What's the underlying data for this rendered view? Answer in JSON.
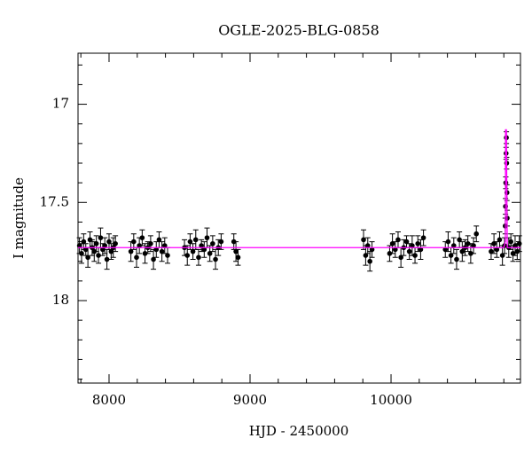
{
  "chart_data": {
    "type": "scatter",
    "title": "OGLE-2025-BLG-0858",
    "x_label": "HJD - 2450000",
    "y_label": "I magnitude",
    "xlim": [
      7780,
      10918
    ],
    "ylim": [
      18.42,
      16.74
    ],
    "xticks": [
      8000,
      9000,
      10000
    ],
    "yticks": [
      17,
      17.5,
      18
    ],
    "xminorticks": [
      7800,
      8200,
      8400,
      8600,
      8800,
      9200,
      9400,
      9600,
      9800,
      10200,
      10400,
      10600,
      10800
    ],
    "yminorticks": [
      16.8,
      16.9,
      17.1,
      17.2,
      17.3,
      17.4,
      17.6,
      17.7,
      17.8,
      17.9,
      18.1,
      18.2,
      18.3,
      18.4
    ],
    "points": {
      "color": "#000000",
      "x": [
        7790,
        7805,
        7820,
        7835,
        7850,
        7865,
        7880,
        7895,
        7910,
        7925,
        7940,
        7955,
        7970,
        7985,
        8000,
        8015,
        8030,
        8045,
        8155,
        8175,
        8195,
        8215,
        8235,
        8255,
        8275,
        8295,
        8315,
        8335,
        8355,
        8375,
        8395,
        8415,
        8535,
        8555,
        8575,
        8595,
        8615,
        8635,
        8655,
        8675,
        8695,
        8715,
        8735,
        8755,
        8775,
        8795,
        8885,
        8900,
        8915,
        9805,
        9820,
        9835,
        9850,
        9865,
        9990,
        10010,
        10030,
        10050,
        10070,
        10090,
        10110,
        10130,
        10150,
        10170,
        10190,
        10210,
        10230,
        10385,
        10405,
        10425,
        10445,
        10465,
        10485,
        10505,
        10525,
        10545,
        10565,
        10585,
        10605,
        10710,
        10730,
        10750,
        10770,
        10790,
        10805,
        10810,
        10812,
        10814,
        10816,
        10818,
        10820,
        10822,
        10824,
        10835,
        10850,
        10865,
        10880,
        10895,
        10910
      ],
      "values": [
        17.72,
        17.76,
        17.7,
        17.74,
        17.78,
        17.69,
        17.73,
        17.75,
        17.71,
        17.77,
        17.68,
        17.74,
        17.72,
        17.79,
        17.7,
        17.75,
        17.73,
        17.71,
        17.75,
        17.7,
        17.78,
        17.72,
        17.68,
        17.76,
        17.73,
        17.71,
        17.79,
        17.74,
        17.69,
        17.75,
        17.72,
        17.77,
        17.73,
        17.77,
        17.7,
        17.75,
        17.69,
        17.78,
        17.72,
        17.74,
        17.68,
        17.76,
        17.71,
        17.79,
        17.73,
        17.7,
        17.7,
        17.75,
        17.78,
        17.69,
        17.77,
        17.72,
        17.8,
        17.74,
        17.76,
        17.71,
        17.74,
        17.69,
        17.78,
        17.73,
        17.7,
        17.75,
        17.72,
        17.77,
        17.71,
        17.74,
        17.68,
        17.74,
        17.7,
        17.77,
        17.72,
        17.79,
        17.69,
        17.75,
        17.73,
        17.71,
        17.76,
        17.72,
        17.66,
        17.75,
        17.71,
        17.74,
        17.69,
        17.77,
        17.72,
        17.62,
        17.52,
        17.4,
        17.25,
        17.17,
        17.3,
        17.45,
        17.58,
        17.73,
        17.7,
        17.76,
        17.72,
        17.75,
        17.71
      ],
      "errors": [
        0.04,
        0.05,
        0.04,
        0.03,
        0.05,
        0.04,
        0.04,
        0.05,
        0.04,
        0.04,
        0.05,
        0.03,
        0.04,
        0.05,
        0.04,
        0.04,
        0.05,
        0.04,
        0.05,
        0.04,
        0.05,
        0.04,
        0.04,
        0.05,
        0.03,
        0.04,
        0.05,
        0.04,
        0.04,
        0.05,
        0.04,
        0.04,
        0.04,
        0.05,
        0.04,
        0.04,
        0.05,
        0.04,
        0.03,
        0.04,
        0.05,
        0.04,
        0.04,
        0.05,
        0.04,
        0.04,
        0.04,
        0.05,
        0.04,
        0.05,
        0.05,
        0.04,
        0.05,
        0.04,
        0.04,
        0.05,
        0.04,
        0.04,
        0.05,
        0.04,
        0.03,
        0.04,
        0.05,
        0.04,
        0.04,
        0.05,
        0.04,
        0.04,
        0.05,
        0.04,
        0.04,
        0.05,
        0.04,
        0.05,
        0.04,
        0.04,
        0.05,
        0.04,
        0.04,
        0.04,
        0.05,
        0.04,
        0.04,
        0.05,
        0.04,
        0.04,
        0.04,
        0.03,
        0.03,
        0.03,
        0.03,
        0.04,
        0.04,
        0.05,
        0.04,
        0.04,
        0.05,
        0.04,
        0.04
      ]
    },
    "model": {
      "color": "#ff00ff",
      "x": [
        7780,
        10800,
        10811,
        10812,
        10818,
        10824,
        10825,
        10918
      ],
      "values": [
        17.73,
        17.73,
        17.7,
        17.13,
        17.13,
        17.7,
        17.73,
        17.73
      ]
    }
  }
}
